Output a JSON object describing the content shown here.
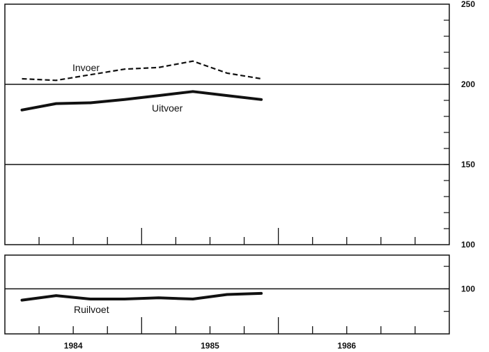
{
  "chart_data": [
    {
      "type": "line",
      "name": "main-panel",
      "x_ticks": [
        {
          "label": "1984",
          "x": 1984.0
        },
        {
          "label": "1985",
          "x": 1985.0
        },
        {
          "label": "1986",
          "x": 1986.0
        }
      ],
      "xlim": [
        1983.5,
        1986.75
      ],
      "ylim": [
        100,
        250
      ],
      "y_tick_labels": [
        "250",
        "200",
        "150",
        "100"
      ],
      "y_ticks": [
        250,
        200,
        150,
        100
      ],
      "reference_lines": [
        200,
        150
      ],
      "series": [
        {
          "name": "Invoer",
          "style": "dashed",
          "x": [
            1983.625,
            1983.875,
            1984.125,
            1984.375,
            1984.625,
            1984.875,
            1985.125,
            1985.375
          ],
          "y": [
            203.5,
            202.5,
            206,
            209.5,
            210.5,
            214.5,
            207,
            203.5
          ]
        },
        {
          "name": "Uitvoer",
          "style": "solid",
          "x": [
            1983.625,
            1983.875,
            1984.125,
            1984.375,
            1984.625,
            1984.875,
            1985.125,
            1985.375
          ],
          "y": [
            184,
            188,
            188.5,
            190.5,
            193,
            195.5,
            193,
            190.5
          ]
        }
      ]
    },
    {
      "type": "line",
      "name": "ruilvoet-panel",
      "x_ticks": [
        {
          "label": "1984",
          "x": 1984.0
        },
        {
          "label": "1985",
          "x": 1985.0
        },
        {
          "label": "1986",
          "x": 1986.0
        }
      ],
      "xlim": [
        1983.5,
        1986.75
      ],
      "ylim": [
        80,
        115
      ],
      "y_tick_labels": [
        "100"
      ],
      "y_ticks": [
        100
      ],
      "reference_lines": [
        100
      ],
      "series": [
        {
          "name": "Ruilvoet",
          "style": "solid",
          "x": [
            1983.625,
            1983.875,
            1984.125,
            1984.375,
            1984.625,
            1984.875,
            1985.125,
            1985.375
          ],
          "y": [
            95,
            97,
            95.5,
            95.5,
            96,
            95.5,
            97.5,
            98
          ]
        }
      ]
    }
  ]
}
